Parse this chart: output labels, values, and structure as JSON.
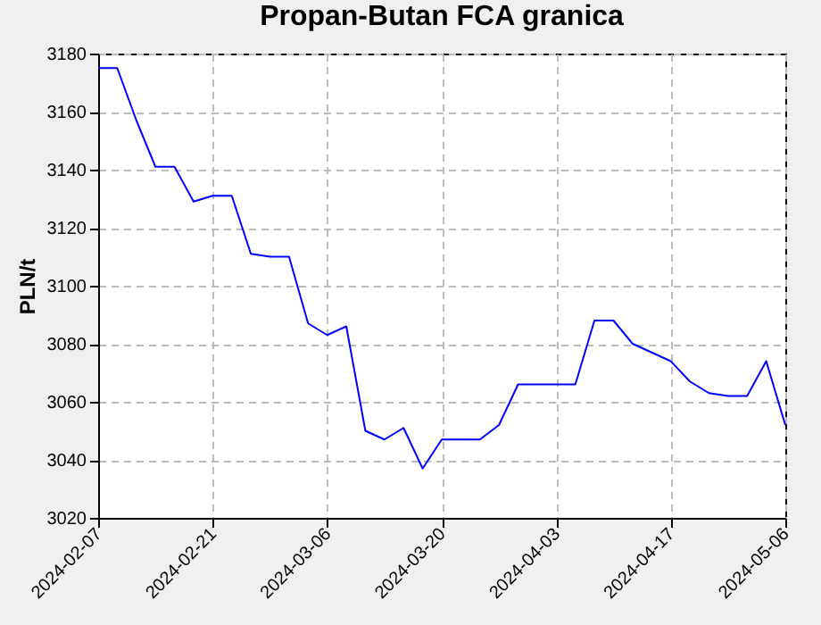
{
  "chart_data": {
    "type": "line",
    "title": "Propan-Butan FCA granica",
    "ylabel": "PLN/t",
    "categories": [
      "2024-02-07",
      null,
      null,
      null,
      null,
      null,
      "2024-02-21",
      null,
      null,
      null,
      null,
      null,
      "2024-03-06",
      null,
      null,
      null,
      null,
      null,
      "2024-03-20",
      null,
      null,
      null,
      null,
      null,
      "2024-04-03",
      null,
      null,
      null,
      null,
      null,
      "2024-04-17",
      null,
      null,
      null,
      null,
      null,
      "2024-05-06"
    ],
    "series": [
      {
        "color": "#0000ff",
        "values": [
          3175,
          3175,
          3157,
          3141,
          3141,
          3129,
          3131,
          3131,
          3111,
          3110,
          3110,
          3087,
          3083,
          3086,
          3050,
          3047,
          3051,
          3037,
          3047,
          3047,
          3047,
          3052,
          3066,
          3066,
          3066,
          3066,
          3088,
          3088,
          3080,
          3077,
          3074,
          3067,
          3063,
          3062,
          3062,
          3074,
          3052
        ]
      }
    ],
    "ylim": [
      3020,
      3180
    ],
    "yticks": [
      3020,
      3040,
      3060,
      3080,
      3100,
      3120,
      3140,
      3160,
      3180
    ],
    "grid": true,
    "marker": "none",
    "line_style": "solid"
  }
}
